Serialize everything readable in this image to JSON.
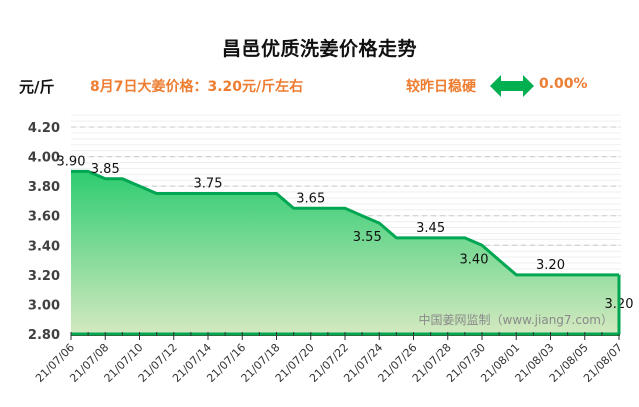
{
  "header": {
    "title": "昌邑优质洗姜价格走势",
    "unit": "元/斤",
    "price_note": "8月7日大姜价格：3.20元/斤左右",
    "compare_label": "较昨日稳硬",
    "change_value": "0.00%",
    "arrow_icon": "double-arrow-icon",
    "accent_color": "#ED7D31",
    "arrow_color": "#00B050"
  },
  "watermark": "中国姜网监制（www.jiang7.com）",
  "colors": {
    "line": "#00A651",
    "fill_top": "#2ECC71",
    "fill_bottom": "#D4E9C0",
    "grid": "#E6E6E6"
  },
  "chart_data": {
    "type": "area",
    "title": "昌邑优质洗姜价格走势",
    "xlabel": "",
    "ylabel": "元/斤",
    "ylim": [
      2.8,
      4.2
    ],
    "yticks": [
      "4.20",
      "4.00",
      "3.80",
      "3.60",
      "3.40",
      "3.20",
      "3.00",
      "2.80"
    ],
    "xtick_labels": [
      "21/07/06",
      "21/07/08",
      "21/07/10",
      "21/07/12",
      "21/07/14",
      "21/07/16",
      "21/07/18",
      "21/07/20",
      "21/07/22",
      "21/07/24",
      "21/07/26",
      "21/07/28",
      "21/07/30",
      "21/08/01",
      "21/08/03",
      "21/08/05",
      "21/08/07"
    ],
    "x": [
      "21/07/06",
      "21/07/07",
      "21/07/08",
      "21/07/09",
      "21/07/10",
      "21/07/11",
      "21/07/12",
      "21/07/13",
      "21/07/14",
      "21/07/15",
      "21/07/16",
      "21/07/17",
      "21/07/18",
      "21/07/19",
      "21/07/20",
      "21/07/21",
      "21/07/22",
      "21/07/23",
      "21/07/24",
      "21/07/25",
      "21/07/26",
      "21/07/27",
      "21/07/28",
      "21/07/29",
      "21/07/30",
      "21/07/31",
      "21/08/01",
      "21/08/02",
      "21/08/03",
      "21/08/04",
      "21/08/05",
      "21/08/06",
      "21/08/07"
    ],
    "values": [
      3.9,
      3.9,
      3.85,
      3.85,
      3.8,
      3.75,
      3.75,
      3.75,
      3.75,
      3.75,
      3.75,
      3.75,
      3.75,
      3.65,
      3.65,
      3.65,
      3.65,
      3.6,
      3.55,
      3.45,
      3.45,
      3.45,
      3.45,
      3.45,
      3.4,
      3.3,
      3.2,
      3.2,
      3.2,
      3.2,
      3.2,
      3.2,
      3.2
    ],
    "annotations": [
      {
        "date": "21/07/06",
        "label": "3.90"
      },
      {
        "date": "21/07/08",
        "label": "3.85"
      },
      {
        "date": "21/07/14",
        "label": "3.75"
      },
      {
        "date": "21/07/20",
        "label": "3.65"
      },
      {
        "date": "21/07/24",
        "label": "3.55"
      },
      {
        "date": "21/07/27",
        "label": "3.45"
      },
      {
        "date": "21/07/30",
        "label": "3.40"
      },
      {
        "date": "21/08/03",
        "label": "3.20"
      },
      {
        "date": "21/08/07",
        "label": "3.20"
      }
    ],
    "grid": true,
    "legend": "none"
  }
}
